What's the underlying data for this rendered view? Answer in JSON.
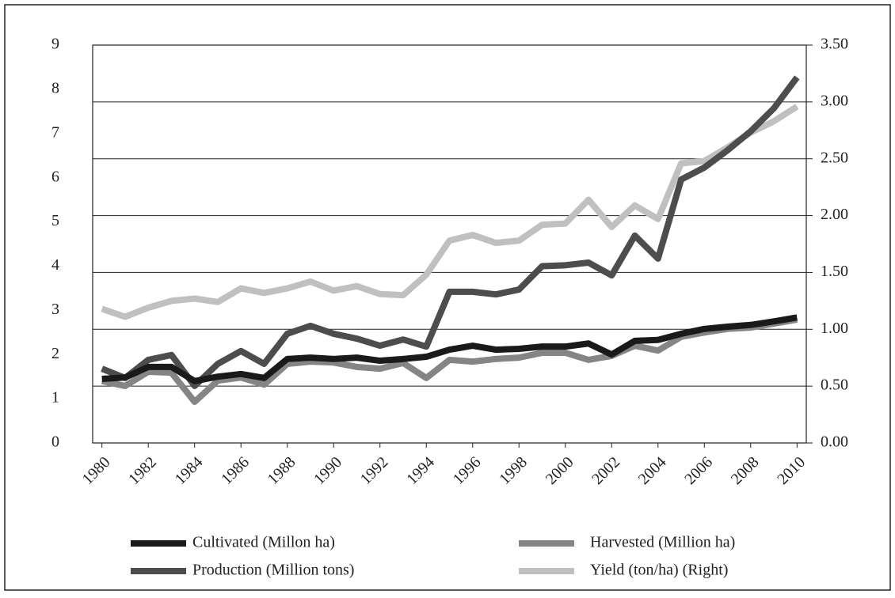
{
  "chart_data": {
    "type": "line",
    "x": [
      1980,
      1981,
      1982,
      1983,
      1984,
      1985,
      1986,
      1987,
      1988,
      1989,
      1990,
      1991,
      1992,
      1993,
      1994,
      1995,
      1996,
      1997,
      1998,
      1999,
      2000,
      2001,
      2002,
      2003,
      2004,
      2005,
      2006,
      2007,
      2008,
      2009,
      2010
    ],
    "xlim": [
      1979.6,
      2010.4
    ],
    "xticks": [
      1980,
      1982,
      1984,
      1986,
      1988,
      1990,
      1992,
      1994,
      1996,
      1998,
      2000,
      2002,
      2004,
      2006,
      2008,
      2010
    ],
    "ylim": [
      0,
      9
    ],
    "yticks": [
      0,
      1,
      2,
      3,
      4,
      5,
      6,
      7,
      8,
      9
    ],
    "y2lim": [
      0,
      3.5
    ],
    "y2ticks": [
      {
        "value": 0,
        "label": "0.00"
      },
      {
        "value": 0.5,
        "label": "0.50"
      },
      {
        "value": 1,
        "label": "1.00"
      },
      {
        "value": 1.5,
        "label": "1.50"
      },
      {
        "value": 2,
        "label": "2.00"
      },
      {
        "value": 2.5,
        "label": "2.50"
      },
      {
        "value": 3,
        "label": "3.00"
      },
      {
        "value": 3.5,
        "label": "3.50"
      }
    ],
    "grid": true,
    "series": [
      {
        "name": "Cultivated (Millon ha)",
        "color": "#1a1a1a",
        "values": [
          1.45,
          1.48,
          1.72,
          1.72,
          1.4,
          1.5,
          1.56,
          1.47,
          1.9,
          1.93,
          1.9,
          1.93,
          1.86,
          1.9,
          1.95,
          2.11,
          2.2,
          2.11,
          2.13,
          2.18,
          2.18,
          2.25,
          2.0,
          2.31,
          2.33,
          2.47,
          2.58,
          2.63,
          2.67,
          2.75,
          2.84
        ]
      },
      {
        "name": "Harvested (Million ha)",
        "color": "#858585",
        "values": [
          1.4,
          1.29,
          1.61,
          1.59,
          0.93,
          1.41,
          1.48,
          1.32,
          1.79,
          1.84,
          1.82,
          1.72,
          1.68,
          1.81,
          1.47,
          1.88,
          1.84,
          1.9,
          1.93,
          2.04,
          2.04,
          1.88,
          1.97,
          2.2,
          2.09,
          2.4,
          2.5,
          2.58,
          2.61,
          2.7,
          2.79
        ]
      },
      {
        "name": "Production (Million tons)",
        "color": "#4d4d4d",
        "values": [
          1.68,
          1.47,
          1.88,
          1.99,
          1.29,
          1.79,
          2.08,
          1.79,
          2.47,
          2.65,
          2.47,
          2.36,
          2.2,
          2.34,
          2.18,
          3.42,
          3.42,
          3.36,
          3.47,
          4.0,
          4.02,
          4.08,
          3.79,
          4.69,
          4.17,
          5.96,
          6.23,
          6.62,
          7.05,
          7.57,
          8.27
        ]
      },
      {
        "name": "Yield (ton/ha) (Right)",
        "color": "#c0c0c0",
        "axis": "y2",
        "values": [
          1.18,
          1.11,
          1.19,
          1.25,
          1.27,
          1.24,
          1.36,
          1.32,
          1.36,
          1.42,
          1.34,
          1.38,
          1.31,
          1.3,
          1.48,
          1.78,
          1.83,
          1.76,
          1.78,
          1.92,
          1.93,
          2.14,
          1.9,
          2.09,
          1.97,
          2.46,
          2.48,
          2.6,
          2.73,
          2.83,
          2.96
        ]
      }
    ]
  }
}
